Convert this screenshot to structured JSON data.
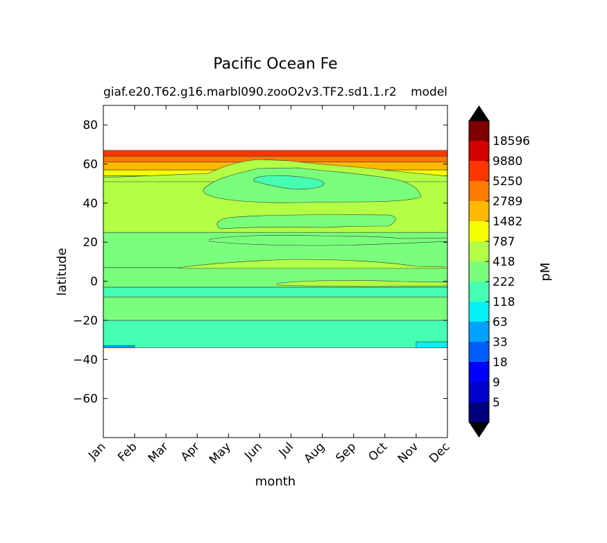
{
  "chart_data": {
    "type": "heatmap",
    "title": "Pacific Ocean Fe",
    "subtitle_left": "giaf.e20.T62.g16.marbl090.zooO2v3.TF2.sd1.1.r2",
    "subtitle_right": "model",
    "xlabel": "month",
    "ylabel": "latitude",
    "colorbar_label": "pM",
    "x_tick_labels": [
      "Jan",
      "Feb",
      "Mar",
      "Apr",
      "May",
      "Jun",
      "Jul",
      "Aug",
      "Sep",
      "Oct",
      "Nov",
      "Dec"
    ],
    "y_ticks": [
      80,
      60,
      40,
      20,
      0,
      -20,
      -40,
      -60
    ],
    "y_tick_labels": [
      "80",
      "60",
      "40",
      "20",
      "0",
      "−20",
      "−40",
      "−60"
    ],
    "ylim": [
      -80,
      90
    ],
    "data_lat_range": [
      -34,
      67
    ],
    "colorbar": {
      "tick_labels": [
        "5",
        "9",
        "18",
        "33",
        "63",
        "118",
        "222",
        "418",
        "787",
        "1482",
        "2789",
        "5250",
        "9880",
        "18596"
      ],
      "colors": [
        "#00007f",
        "#0000cd",
        "#0000ff",
        "#005eff",
        "#00a2ff",
        "#02f0f6",
        "#45ffb2",
        "#7aff7d",
        "#b2ff45",
        "#f6ff02",
        "#ffb900",
        "#ff7b00",
        "#ff3500",
        "#d50000",
        "#7f0000"
      ],
      "extend": "both"
    },
    "bands": [
      {
        "lat_from": -34,
        "lat_to": -33,
        "level_index": 4,
        "months": "Jan-Feb"
      },
      {
        "lat_from": -34,
        "lat_to": -31,
        "level_index": 5,
        "months": "Nov-Dec"
      },
      {
        "lat_from": -34,
        "lat_to": -20,
        "level_index": 6
      },
      {
        "lat_from": -20,
        "lat_to": -8,
        "level_index": 7
      },
      {
        "lat_from": -8,
        "lat_to": -3,
        "level_index": 6
      },
      {
        "lat_from": -3,
        "lat_to": 7,
        "level_index": 7
      },
      {
        "lat_from": 7,
        "lat_to": 25,
        "level_index": 7
      },
      {
        "lat_from": 25,
        "lat_to": 54,
        "level_index": 8
      },
      {
        "lat_from": 54,
        "lat_to": 57,
        "level_index": 9
      },
      {
        "lat_from": 57,
        "lat_to": 61,
        "level_index": 10
      },
      {
        "lat_from": 61,
        "lat_to": 64,
        "level_index": 11
      },
      {
        "lat_from": 64,
        "lat_to": 67,
        "level_index": 12
      }
    ]
  }
}
